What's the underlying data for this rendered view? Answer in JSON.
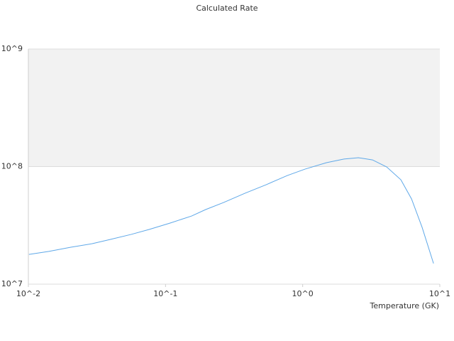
{
  "chart_data": {
    "type": "line",
    "title": "Calculated Rate",
    "x_label": "Temperature (GK)",
    "log_x": true,
    "log_y": true,
    "grid": true,
    "band_fill": "#f2f2f2",
    "xlim": [
      0.01,
      10
    ],
    "ylim": [
      10000000,
      1000000000
    ],
    "xticks": [
      {
        "value": 0.01,
        "label": "10^-2"
      },
      {
        "value": 0.1,
        "label": "10^-1"
      },
      {
        "value": 1,
        "label": "10^0"
      },
      {
        "value": 10,
        "label": "10^1"
      }
    ],
    "yticks": [
      {
        "value": 10000000,
        "label": "10^7"
      },
      {
        "value": 100000000,
        "label": "10^8"
      },
      {
        "value": 1000000000,
        "label": "10^9"
      }
    ],
    "series": [
      {
        "color": "#5fa8e8",
        "x": [
          0.0101,
          0.0141,
          0.0204,
          0.0292,
          0.0394,
          0.0562,
          0.0759,
          0.108,
          0.155,
          0.196,
          0.265,
          0.379,
          0.541,
          0.773,
          1.04,
          1.49,
          2.0,
          2.55,
          3.23,
          4.1,
          5.2,
          6.22,
          7.43,
          9.0
        ],
        "values": [
          17900000,
          19000000,
          20600000,
          22100000,
          24000000,
          26500000,
          29200000,
          33100000,
          38000000,
          43100000,
          49500000,
          59300000,
          70100000,
          84000000,
          95200000,
          108000000,
          116000000,
          119000000,
          114000000,
          99300000,
          77300000,
          53100000,
          30400000,
          15000000
        ]
      }
    ]
  }
}
